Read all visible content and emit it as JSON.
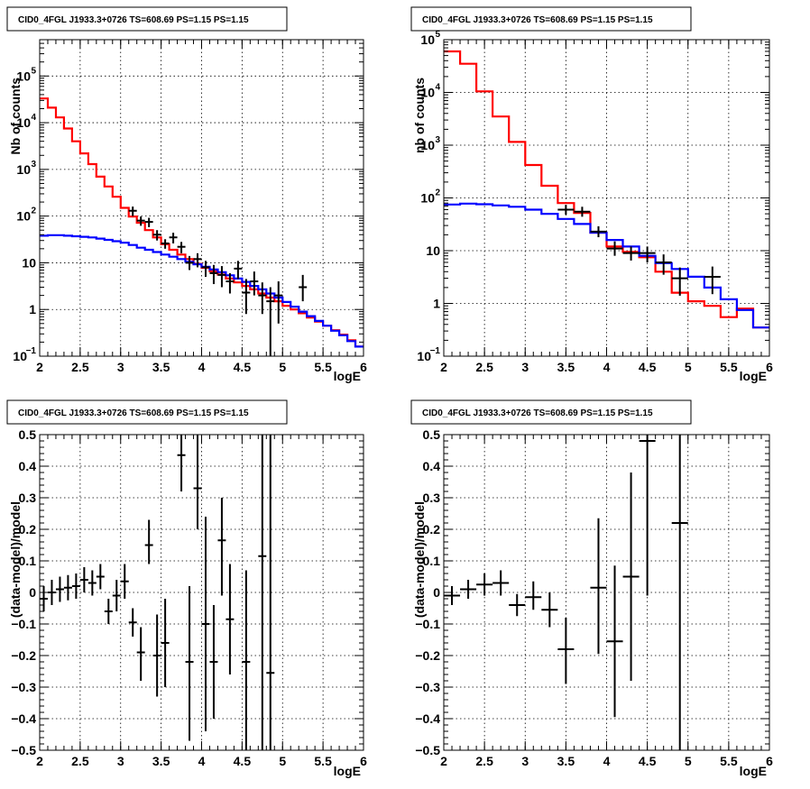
{
  "chart_data": [
    {
      "type": "line",
      "title": "CID0_4FGL J1933.3+0726 TS=608.69 PS=1.15 PS=1.15",
      "xlabel": "logE",
      "ylabel": "Nb of counts",
      "yscale": "log",
      "xlim": [
        2,
        6
      ],
      "ylim": [
        0.1,
        600000
      ],
      "grid": true,
      "xticks": [
        "2",
        "2.5",
        "3",
        "3.5",
        "4",
        "4.5",
        "5",
        "5.5",
        "6"
      ],
      "yticks": [
        {
          "v": 0.1,
          "b": "10",
          "e": "−1"
        },
        {
          "v": 1,
          "b": "1",
          "e": ""
        },
        {
          "v": 10,
          "b": "10",
          "e": ""
        },
        {
          "v": 100,
          "b": "10",
          "e": "2"
        },
        {
          "v": 1000,
          "b": "10",
          "e": "3"
        },
        {
          "v": 10000,
          "b": "10",
          "e": "4"
        },
        {
          "v": 100000,
          "b": "10",
          "e": "5"
        }
      ],
      "series": [
        {
          "color": "#ff0000",
          "kind": "hist",
          "x_edges": [
            2,
            2.1,
            2.2,
            2.3,
            2.4,
            2.5,
            2.6,
            2.7,
            2.8,
            2.9,
            3.0,
            3.1,
            3.2,
            3.3,
            3.4,
            3.5,
            3.6,
            3.7,
            3.8,
            3.9,
            4.0,
            4.1,
            4.2,
            4.3,
            4.4,
            4.5,
            4.6,
            4.7,
            4.8,
            4.9,
            5.0,
            5.1,
            5.2,
            5.3,
            5.4,
            5.5,
            5.6,
            5.7,
            5.8,
            5.9,
            6.0
          ],
          "values": [
            33000,
            21000,
            13000,
            7500,
            4000,
            2200,
            1300,
            700,
            430,
            260,
            150,
            98,
            72,
            50,
            35,
            25,
            19,
            15,
            12,
            9.5,
            7.8,
            6.6,
            5.6,
            4.6,
            3.8,
            3.2,
            2.7,
            2.2,
            1.8,
            1.5,
            1.2,
            1.0,
            0.83,
            0.67,
            0.55,
            0.45,
            0.36,
            0.29,
            0.22,
            0.16
          ]
        },
        {
          "color": "#0000ff",
          "kind": "hist",
          "x_edges": [
            2,
            2.1,
            2.2,
            2.3,
            2.4,
            2.5,
            2.6,
            2.7,
            2.8,
            2.9,
            3.0,
            3.1,
            3.2,
            3.3,
            3.4,
            3.5,
            3.6,
            3.7,
            3.8,
            3.9,
            4.0,
            4.1,
            4.2,
            4.3,
            4.4,
            4.5,
            4.6,
            4.7,
            4.8,
            4.9,
            5.0,
            5.1,
            5.2,
            5.3,
            5.4,
            5.5,
            5.6,
            5.7,
            5.8,
            5.9,
            6.0
          ],
          "values": [
            38,
            39,
            39,
            38,
            37,
            36,
            35,
            33,
            31,
            29,
            27,
            24,
            21,
            19,
            17,
            15,
            13.5,
            12,
            10.5,
            9.3,
            8.2,
            7.2,
            6.3,
            5.4,
            4.6,
            3.9,
            3.2,
            2.7,
            2.2,
            1.8,
            1.45,
            1.15,
            0.9,
            0.72,
            0.57,
            0.45,
            0.35,
            0.28,
            0.21,
            0.16
          ]
        },
        {
          "color": "#000000",
          "kind": "errorbar",
          "x": [
            3.15,
            3.25,
            3.35,
            3.45,
            3.55,
            3.65,
            3.75,
            3.85,
            3.95,
            4.05,
            4.15,
            4.25,
            4.35,
            4.45,
            4.55,
            4.65,
            4.75,
            4.85,
            4.95,
            5.25
          ],
          "xerr": 0.05,
          "y": [
            130,
            80,
            75,
            40,
            26,
            35,
            22,
            10,
            12,
            8,
            6,
            5.5,
            4,
            7.5,
            2.3,
            4,
            2,
            1.5,
            2,
            3
          ],
          "ylo": [
            100,
            62,
            58,
            30,
            20,
            26,
            16,
            7,
            8,
            5,
            3.5,
            3,
            2.2,
            4.5,
            0.8,
            2,
            0.8,
            0.08,
            0.5,
            1.5
          ],
          "yhi": [
            160,
            98,
            92,
            50,
            32,
            44,
            28,
            14,
            16,
            11,
            9,
            8.5,
            6,
            11,
            4.5,
            6.5,
            3.8,
            3,
            4,
            5.5
          ]
        }
      ]
    },
    {
      "type": "line",
      "title": "CID0_4FGL J1933.3+0726 TS=608.69 PS=1.15 PS=1.15",
      "xlabel": "logE",
      "ylabel": "nb of counts",
      "yscale": "log",
      "xlim": [
        2,
        6
      ],
      "ylim": [
        0.1,
        100000
      ],
      "grid": true,
      "xticks": [
        "2",
        "2.5",
        "3",
        "3.5",
        "4",
        "4.5",
        "5",
        "5.5",
        "6"
      ],
      "yticks": [
        {
          "v": 0.1,
          "b": "10",
          "e": "−1"
        },
        {
          "v": 1,
          "b": "1",
          "e": ""
        },
        {
          "v": 10,
          "b": "10",
          "e": ""
        },
        {
          "v": 100,
          "b": "10",
          "e": "2"
        },
        {
          "v": 1000,
          "b": "10",
          "e": "3"
        },
        {
          "v": 10000,
          "b": "10",
          "e": "4"
        },
        {
          "v": 100000,
          "b": "10",
          "e": "5"
        }
      ],
      "series": [
        {
          "color": "#ff0000",
          "kind": "hist",
          "x_edges": [
            2,
            2.2,
            2.4,
            2.6,
            2.8,
            3.0,
            3.2,
            3.4,
            3.6,
            3.8,
            4.0,
            4.2,
            4.4,
            4.6,
            4.8,
            5.0,
            5.2,
            5.4,
            5.6,
            5.8,
            6.0
          ],
          "values": [
            60000,
            35000,
            10500,
            3500,
            1150,
            420,
            170,
            80,
            52,
            22,
            12,
            9.5,
            7.5,
            4,
            1.6,
            1.1,
            0.9,
            0.55,
            0.8,
            0.35
          ]
        },
        {
          "color": "#0000ff",
          "kind": "hist",
          "x_edges": [
            2,
            2.2,
            2.4,
            2.6,
            2.8,
            3.0,
            3.2,
            3.4,
            3.6,
            3.8,
            4.0,
            4.2,
            4.4,
            4.6,
            4.8,
            5.0,
            5.2,
            5.4,
            5.6,
            5.8,
            6.0
          ],
          "values": [
            75,
            78,
            76,
            72,
            68,
            60,
            50,
            40,
            32,
            22,
            16,
            12,
            8,
            5.8,
            4.5,
            3.2,
            2,
            1.2,
            0.75,
            0.35
          ]
        },
        {
          "color": "#000000",
          "kind": "errorbar",
          "x": [
            3.5,
            3.7,
            3.9,
            4.1,
            4.3,
            4.5,
            4.7,
            4.9,
            5.3
          ],
          "xerr": 0.1,
          "y": [
            60,
            55,
            23,
            11,
            9,
            9,
            6,
            3,
            3.2
          ],
          "ylo": [
            48,
            44,
            18,
            8,
            6.5,
            6,
            3.5,
            1.4,
            1.5
          ],
          "yhi": [
            74,
            68,
            29,
            15,
            12,
            12,
            8.5,
            4.8,
            5
          ]
        }
      ]
    },
    {
      "type": "scatter",
      "title": "CID0_4FGL J1933.3+0726 TS=608.69 PS=1.15 PS=1.15",
      "xlabel": "logE",
      "ylabel": "(data-model)/model",
      "yscale": "linear",
      "xlim": [
        2,
        6
      ],
      "ylim": [
        -0.5,
        0.5
      ],
      "grid": true,
      "xticks": [
        "2",
        "2.5",
        "3",
        "3.5",
        "4",
        "4.5",
        "5",
        "5.5",
        "6"
      ],
      "yticks": [
        {
          "v": -0.5,
          "b": "−0.5",
          "e": ""
        },
        {
          "v": -0.4,
          "b": "−0.4",
          "e": ""
        },
        {
          "v": -0.3,
          "b": "−0.3",
          "e": ""
        },
        {
          "v": -0.2,
          "b": "−0.2",
          "e": ""
        },
        {
          "v": -0.1,
          "b": "−0.1",
          "e": ""
        },
        {
          "v": 0,
          "b": "0",
          "e": ""
        },
        {
          "v": 0.1,
          "b": "0.1",
          "e": ""
        },
        {
          "v": 0.2,
          "b": "0.2",
          "e": ""
        },
        {
          "v": 0.3,
          "b": "0.3",
          "e": ""
        },
        {
          "v": 0.4,
          "b": "0.4",
          "e": ""
        },
        {
          "v": 0.5,
          "b": "0.5",
          "e": ""
        }
      ],
      "series": [
        {
          "color": "#000000",
          "kind": "errorbar",
          "x": [
            2.05,
            2.15,
            2.25,
            2.35,
            2.45,
            2.55,
            2.65,
            2.75,
            2.85,
            2.95,
            3.05,
            3.15,
            3.25,
            3.35,
            3.45,
            3.55,
            3.75,
            3.85,
            3.95,
            4.05,
            4.15,
            4.25,
            4.35,
            4.55,
            4.75,
            4.85
          ],
          "xerr": 0.05,
          "y": [
            -0.02,
            0,
            0.01,
            0.015,
            0.02,
            0.04,
            0.03,
            0.05,
            -0.06,
            -0.01,
            0.035,
            -0.095,
            -0.19,
            0.15,
            -0.2,
            -0.16,
            0.435,
            -0.22,
            0.33,
            -0.1,
            -0.22,
            0.165,
            -0.085,
            -0.22,
            0.115,
            -0.255
          ],
          "ylo": [
            -0.06,
            -0.04,
            -0.03,
            -0.025,
            -0.02,
            0,
            -0.01,
            0.01,
            -0.1,
            -0.06,
            -0.02,
            -0.14,
            -0.28,
            0.09,
            -0.33,
            -0.3,
            0.32,
            -0.47,
            0.2,
            -0.44,
            -0.4,
            -0.01,
            -0.26,
            -0.5,
            -0.5,
            -0.5
          ],
          "yhi": [
            0.02,
            0.04,
            0.05,
            0.055,
            0.06,
            0.08,
            0.07,
            0.09,
            -0.02,
            0.04,
            0.09,
            -0.05,
            -0.11,
            0.23,
            -0.07,
            -0.02,
            0.5,
            0.02,
            0.5,
            0.24,
            -0.04,
            0.3,
            0.09,
            0.07,
            0.5,
            0.5
          ]
        }
      ]
    },
    {
      "type": "scatter",
      "title": "CID0_4FGL J1933.3+0726 TS=608.69 PS=1.15 PS=1.15",
      "xlabel": "logE",
      "ylabel": "(data-model)/model",
      "yscale": "linear",
      "xlim": [
        2,
        6
      ],
      "ylim": [
        -0.5,
        0.5
      ],
      "grid": true,
      "xticks": [
        "2",
        "2.5",
        "3",
        "3.5",
        "4",
        "4.5",
        "5",
        "5.5",
        "6"
      ],
      "yticks": [
        {
          "v": -0.5,
          "b": "−0.5",
          "e": ""
        },
        {
          "v": -0.4,
          "b": "−0.4",
          "e": ""
        },
        {
          "v": -0.3,
          "b": "−0.3",
          "e": ""
        },
        {
          "v": -0.2,
          "b": "−0.2",
          "e": ""
        },
        {
          "v": -0.1,
          "b": "−0.1",
          "e": ""
        },
        {
          "v": 0,
          "b": "0",
          "e": ""
        },
        {
          "v": 0.1,
          "b": "0.1",
          "e": ""
        },
        {
          "v": 0.2,
          "b": "0.2",
          "e": ""
        },
        {
          "v": 0.3,
          "b": "0.3",
          "e": ""
        },
        {
          "v": 0.4,
          "b": "0.4",
          "e": ""
        },
        {
          "v": 0.5,
          "b": "0.5",
          "e": ""
        }
      ],
      "series": [
        {
          "color": "#000000",
          "kind": "errorbar",
          "x": [
            2.1,
            2.3,
            2.5,
            2.7,
            2.9,
            3.1,
            3.3,
            3.5,
            3.9,
            4.1,
            4.3,
            4.5,
            4.9
          ],
          "xerr": 0.1,
          "y": [
            -0.01,
            0.01,
            0.025,
            0.03,
            -0.04,
            -0.015,
            -0.055,
            -0.18,
            0.015,
            -0.155,
            0.05,
            0.48,
            0.22
          ],
          "ylo": [
            -0.04,
            -0.02,
            -0.01,
            -0.01,
            -0.075,
            -0.055,
            -0.11,
            -0.29,
            -0.195,
            -0.395,
            -0.28,
            -0.01,
            -0.5
          ],
          "yhi": [
            0.02,
            0.04,
            0.06,
            0.07,
            -0.005,
            0.035,
            0,
            -0.08,
            0.235,
            0.085,
            0.38,
            0.5,
            0.5
          ]
        }
      ]
    }
  ]
}
